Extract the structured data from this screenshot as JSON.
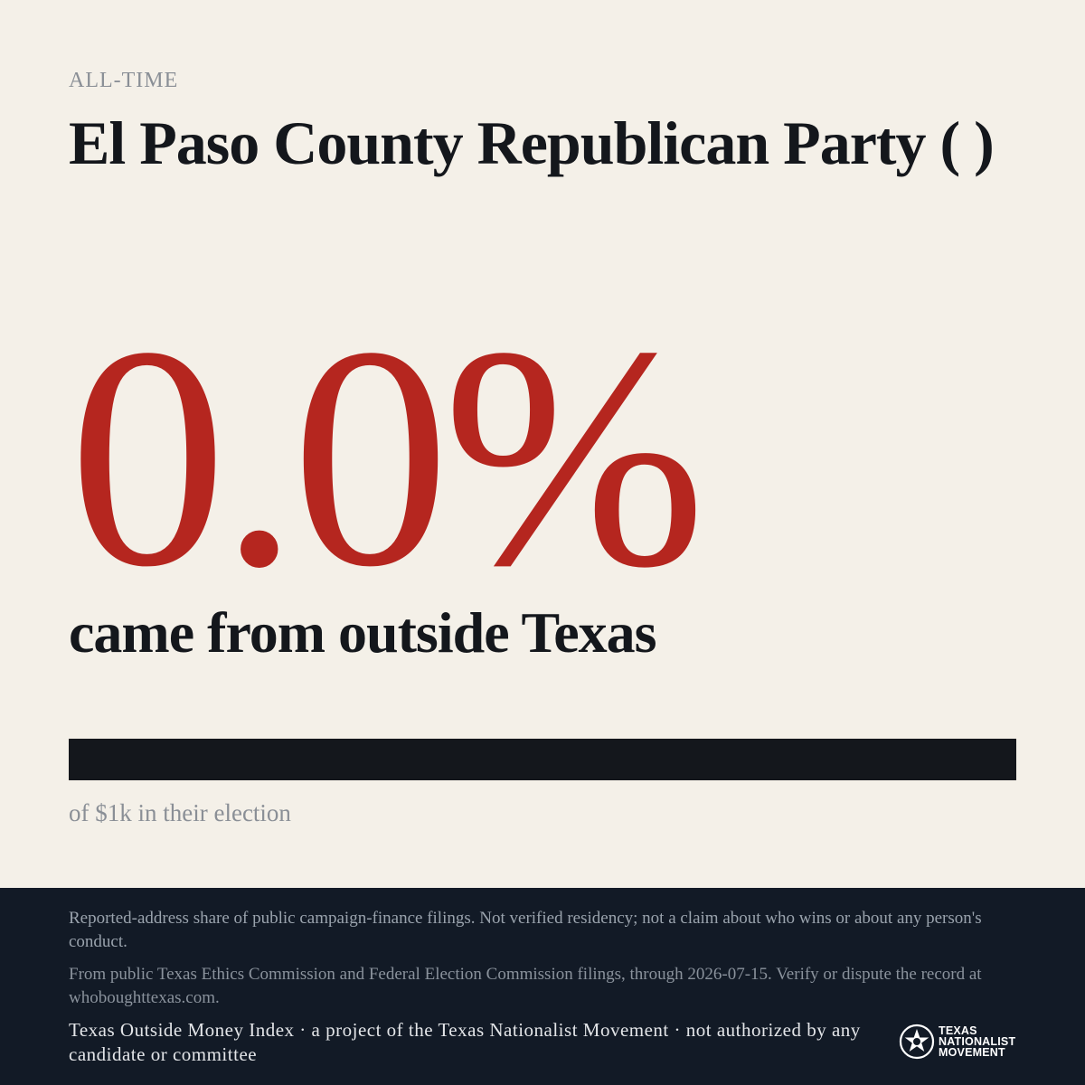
{
  "header": {
    "eyebrow": "ALL-TIME",
    "title": "El Paso County Republican Party ( )"
  },
  "stat": {
    "percent_text": "0.0%",
    "caption": "came from outside Texas",
    "outside_share": 0.0,
    "total_text": "of $1k in their election"
  },
  "colors": {
    "accent": "#b5261f",
    "ink": "#14171c",
    "background": "#f4f0e8",
    "footer_bg": "#121a26"
  },
  "footer": {
    "disclaimer": "Reported-address share of public campaign-finance filings. Not verified residency; not a claim about who wins or about any person's conduct.",
    "source": "From public Texas Ethics Commission and Federal Election Commission filings, through 2026-07-15. Verify or dispute the record at whoboughttexas.com.",
    "credit": "Texas Outside Money Index · a project of the Texas Nationalist Movement · not authorized by any candidate or committee",
    "logo": {
      "icon": "star-seal-icon",
      "line1": "TEXAS",
      "line2": "NATIONALIST",
      "line3": "MOVEMENT"
    }
  }
}
